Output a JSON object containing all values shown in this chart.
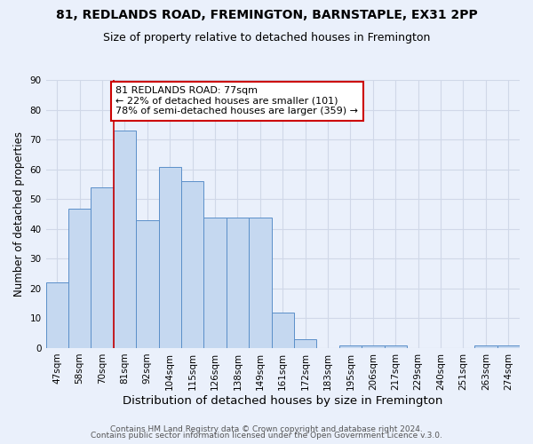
{
  "title1": "81, REDLANDS ROAD, FREMINGTON, BARNSTAPLE, EX31 2PP",
  "title2": "Size of property relative to detached houses in Fremington",
  "xlabel": "Distribution of detached houses by size in Fremington",
  "ylabel": "Number of detached properties",
  "footer1": "Contains HM Land Registry data © Crown copyright and database right 2024.",
  "footer2": "Contains public sector information licensed under the Open Government Licence v.3.0.",
  "bar_labels": [
    "47sqm",
    "58sqm",
    "70sqm",
    "81sqm",
    "92sqm",
    "104sqm",
    "115sqm",
    "126sqm",
    "138sqm",
    "149sqm",
    "161sqm",
    "172sqm",
    "183sqm",
    "195sqm",
    "206sqm",
    "217sqm",
    "229sqm",
    "240sqm",
    "251sqm",
    "263sqm",
    "274sqm"
  ],
  "bar_values": [
    22,
    47,
    54,
    73,
    43,
    61,
    56,
    44,
    44,
    44,
    12,
    3,
    0,
    1,
    1,
    1,
    0,
    0,
    0,
    1,
    1
  ],
  "bar_color": "#c5d8f0",
  "bar_edge_color": "#5b8fc9",
  "background_color": "#eaf0fb",
  "grid_color": "#d0d8e8",
  "annotation_line1": "81 REDLANDS ROAD: 77sqm",
  "annotation_line2": "← 22% of detached houses are smaller (101)",
  "annotation_line3": "78% of semi-detached houses are larger (359) →",
  "annotation_box_color": "#ffffff",
  "annotation_border_color": "#cc0000",
  "red_line_x": 2.5,
  "ylim": [
    0,
    90
  ],
  "yticks": [
    0,
    10,
    20,
    30,
    40,
    50,
    60,
    70,
    80,
    90
  ],
  "title1_fontsize": 10,
  "title2_fontsize": 9,
  "xlabel_fontsize": 9.5,
  "ylabel_fontsize": 8.5,
  "tick_fontsize": 7.5,
  "annotation_fontsize": 8,
  "footer_fontsize": 6.5
}
